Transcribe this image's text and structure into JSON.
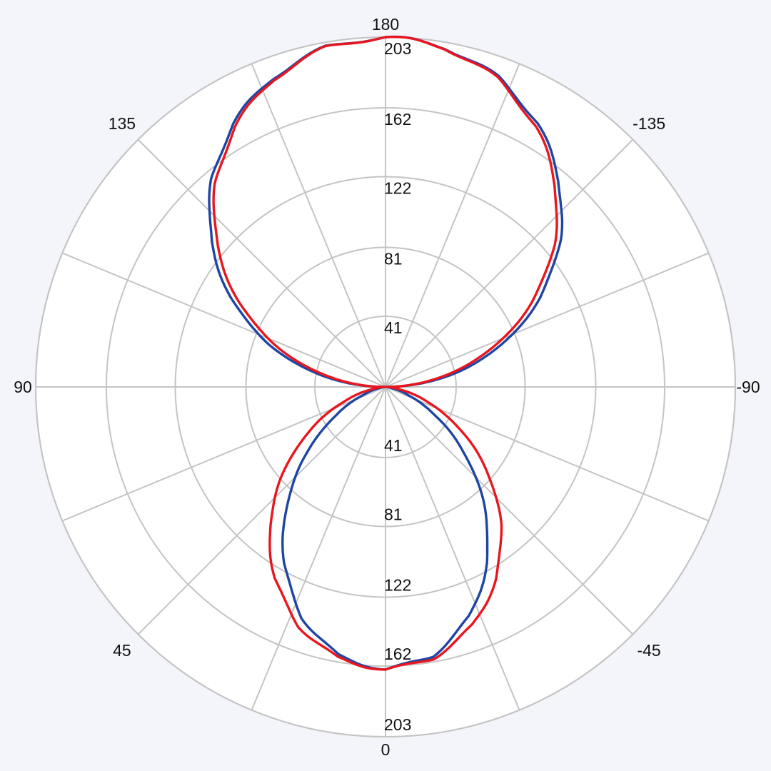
{
  "chart_data": {
    "type": "polar-line",
    "title": "",
    "radial_ticks": [
      41,
      81,
      122,
      162,
      203
    ],
    "radial_max": 203,
    "angle_labels": [
      0,
      45,
      90,
      135,
      180,
      -135,
      -90,
      -45
    ],
    "spoke_step_deg": 22.5,
    "grid": true,
    "angle_convention": "0 at bottom, 90 at left, 180 at top, -90 at right",
    "angles_deg": [
      -180,
      -170,
      -160,
      -150,
      -140,
      -130,
      -120,
      -110,
      -100,
      -90,
      -80,
      -70,
      -60,
      -50,
      -40,
      -30,
      -20,
      -10,
      0,
      10,
      20,
      30,
      40,
      50,
      60,
      70,
      80,
      90,
      100,
      110,
      120,
      130,
      140,
      150,
      160,
      170,
      180
    ],
    "series": [
      {
        "color": "#1f45a3",
        "values": [
          203,
          200.0,
          191.1,
          176.6,
          156.7,
          132.2,
          103.6,
          71.7,
          37.1,
          0,
          2.9,
          13.9,
          33.3,
          59.4,
          88.8,
          117.8,
          142.1,
          158.3,
          164,
          158.3,
          142.1,
          117.8,
          88.8,
          59.4,
          33.3,
          13.9,
          2.9,
          0,
          37.1,
          71.7,
          103.6,
          132.2,
          156.7,
          176.6,
          191.1,
          200.0,
          203
        ]
      },
      {
        "color": "#e8161e",
        "values": [
          203,
          199.8,
          190.2,
          174.6,
          153.4,
          127.6,
          98.0,
          65.8,
          32.3,
          0,
          8.4,
          26.5,
          50.5,
          77.4,
          104.2,
          128.4,
          147.5,
          159.8,
          164,
          159.8,
          147.5,
          128.4,
          104.2,
          77.4,
          50.5,
          26.5,
          8.4,
          0,
          32.3,
          65.8,
          98.0,
          127.6,
          153.4,
          174.6,
          190.2,
          199.8,
          203
        ]
      }
    ],
    "colors": {
      "background": "#f4f5fb",
      "plot": "#ffffff",
      "grid": "#c4c4c4"
    }
  }
}
